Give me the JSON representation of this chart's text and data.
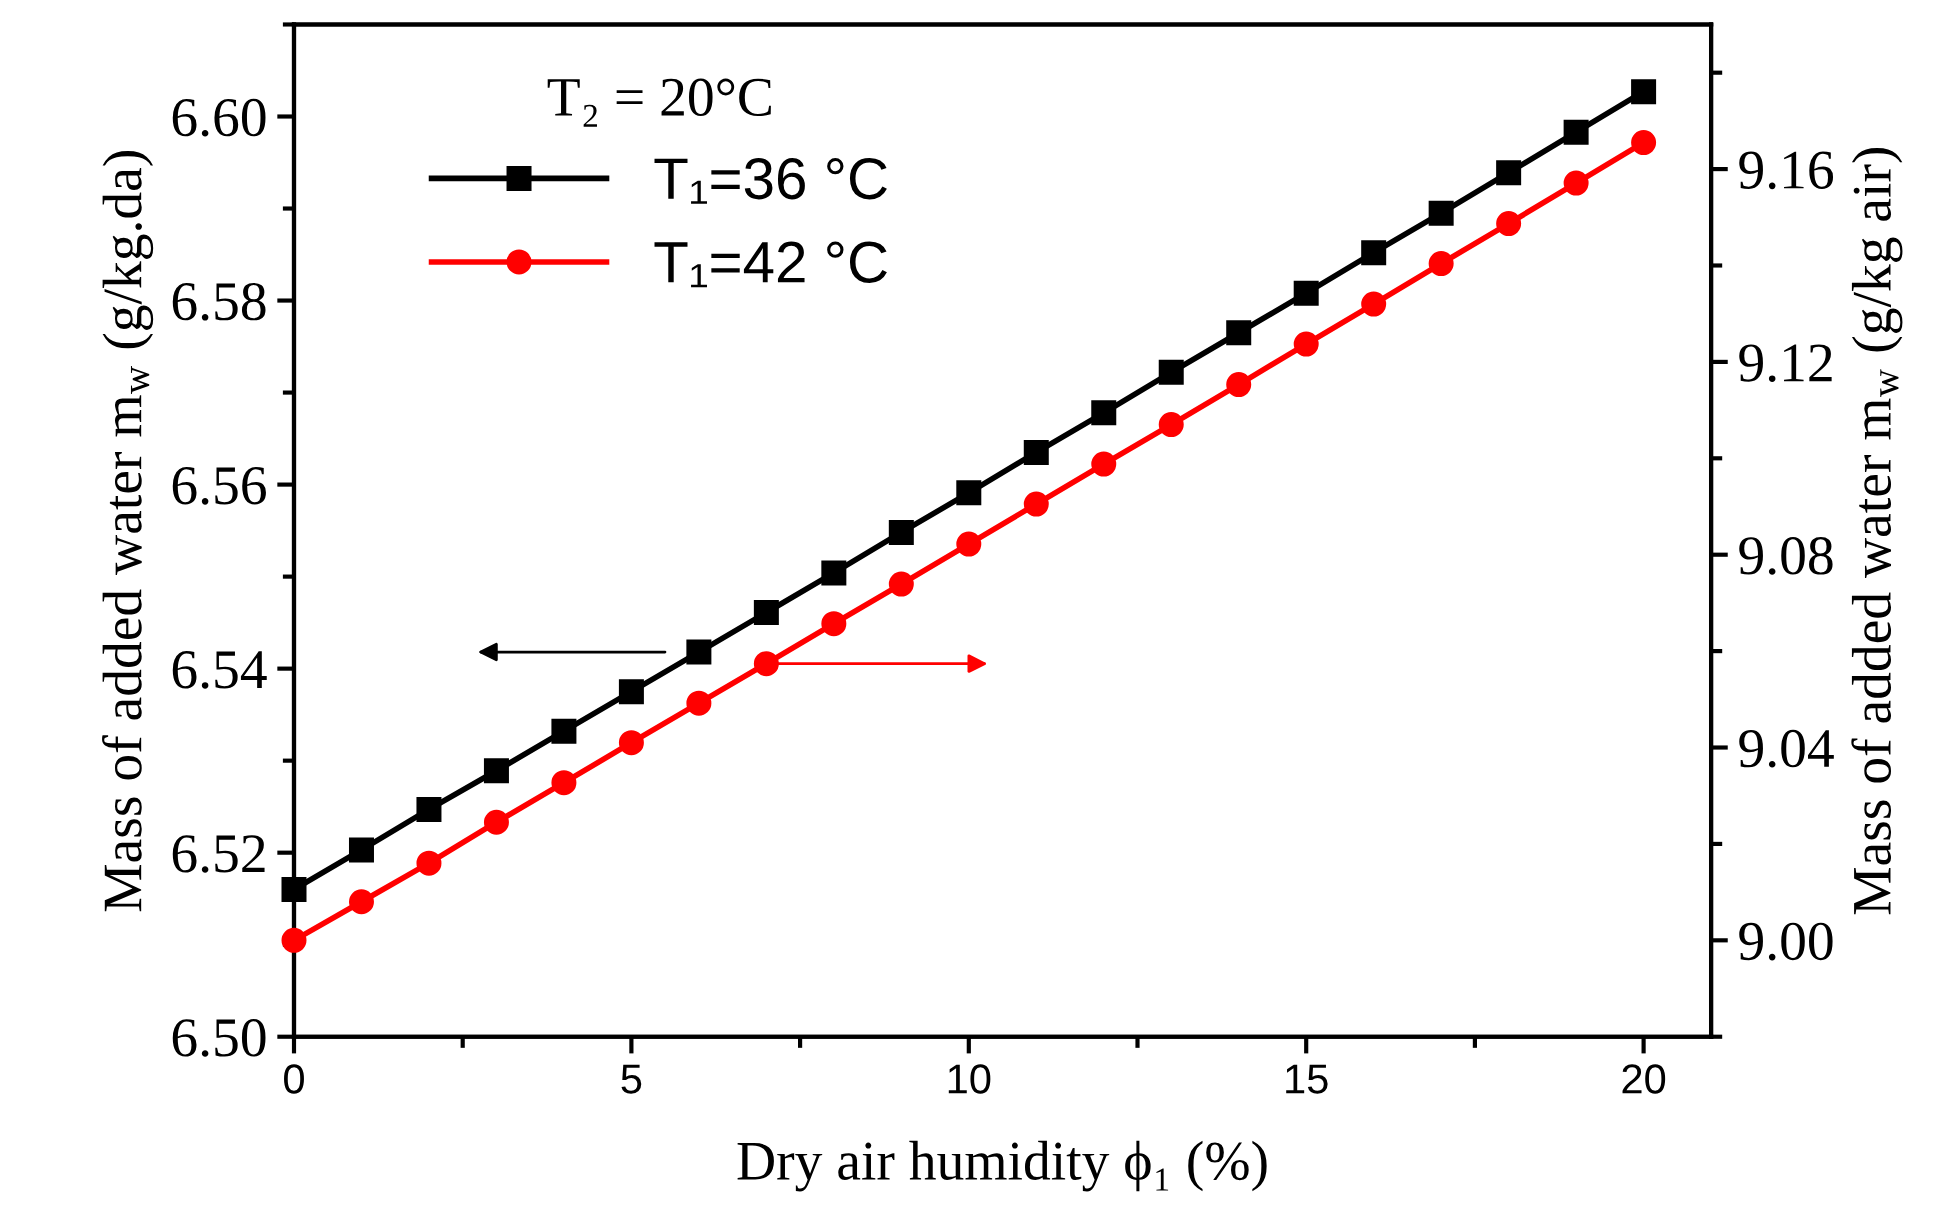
{
  "chart_data": {
    "type": "line",
    "xlabel": "Dry air humidity ϕ₁ (%)",
    "ylabel": "Mass of added water m$_{w}$ (g/kg.da)",
    "y2label": "Mass of added water m$_{w}$ (g/kg air)",
    "legend_title": "T₂ = 20°C",
    "x": [
      0,
      1,
      2,
      3,
      4,
      5,
      6,
      7,
      8,
      9,
      10,
      11,
      12,
      13,
      14,
      15,
      16,
      17,
      18,
      19,
      20
    ],
    "series": [
      {
        "name": "T₁=36 °C",
        "color": "#000000",
        "marker": "square",
        "axis": "y",
        "values": [
          6.516,
          6.5203,
          6.5247,
          6.5289,
          6.5332,
          6.5375,
          6.5418,
          6.5461,
          6.5504,
          6.5548,
          6.5591,
          6.5635,
          6.5678,
          6.5722,
          6.5765,
          6.5808,
          6.5852,
          6.5895,
          6.5939,
          6.5983,
          6.6027
        ]
      },
      {
        "name": "T₁=42 °C",
        "color": "#ff0000",
        "marker": "circle",
        "axis": "y2",
        "values": [
          9.0,
          9.008,
          9.016,
          9.0245,
          9.0327,
          9.041,
          9.0492,
          9.0574,
          9.0657,
          9.0739,
          9.0822,
          9.0905,
          9.0988,
          9.107,
          9.1153,
          9.1237,
          9.132,
          9.1404,
          9.1487,
          9.1571,
          9.1655
        ]
      }
    ],
    "xlim": [
      0,
      21
    ],
    "xticks": [
      0,
      5,
      10,
      15,
      20
    ],
    "ylim": [
      6.5,
      6.61
    ],
    "yticks": [
      {
        "value": 6.5,
        "label": "6.50"
      },
      {
        "value": 6.52,
        "label": "6.52"
      },
      {
        "value": 6.54,
        "label": "6.54"
      },
      {
        "value": 6.56,
        "label": "6.56"
      },
      {
        "value": 6.58,
        "label": "6.58"
      },
      {
        "value": 6.6,
        "label": "6.60"
      }
    ],
    "y2lim": [
      8.98,
      9.19
    ],
    "y2ticks": [
      {
        "value": 9.0,
        "label": "9.00"
      },
      {
        "value": 9.04,
        "label": "9.04"
      },
      {
        "value": 9.08,
        "label": "9.08"
      },
      {
        "value": 9.12,
        "label": "9.12"
      },
      {
        "value": 9.16,
        "label": "9.16"
      }
    ],
    "legend": "top left",
    "grid": false,
    "line_style": "solid"
  }
}
